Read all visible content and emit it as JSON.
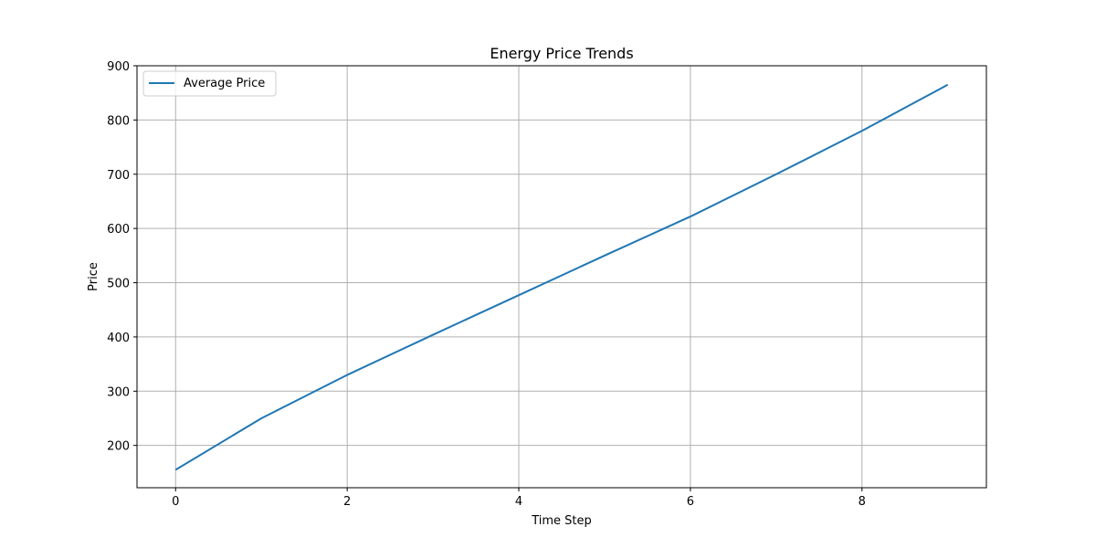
{
  "chart_data": {
    "type": "line",
    "title": "Energy Price Trends",
    "xlabel": "Time Step",
    "ylabel": "Price",
    "xlim": [
      -0.45,
      9.45
    ],
    "ylim": [
      122,
      900
    ],
    "xticks": [
      0,
      2,
      4,
      6,
      8
    ],
    "yticks": [
      200,
      300,
      400,
      500,
      600,
      700,
      800,
      900
    ],
    "grid": true,
    "legend_position": "upper-left",
    "series": [
      {
        "name": "Average Price",
        "color": "#1f77b4",
        "x": [
          0,
          1,
          2,
          3,
          4,
          5,
          6,
          7,
          8,
          9
        ],
        "values": [
          155,
          250,
          330,
          404,
          477,
          550,
          622,
          700,
          780,
          865
        ]
      }
    ]
  }
}
